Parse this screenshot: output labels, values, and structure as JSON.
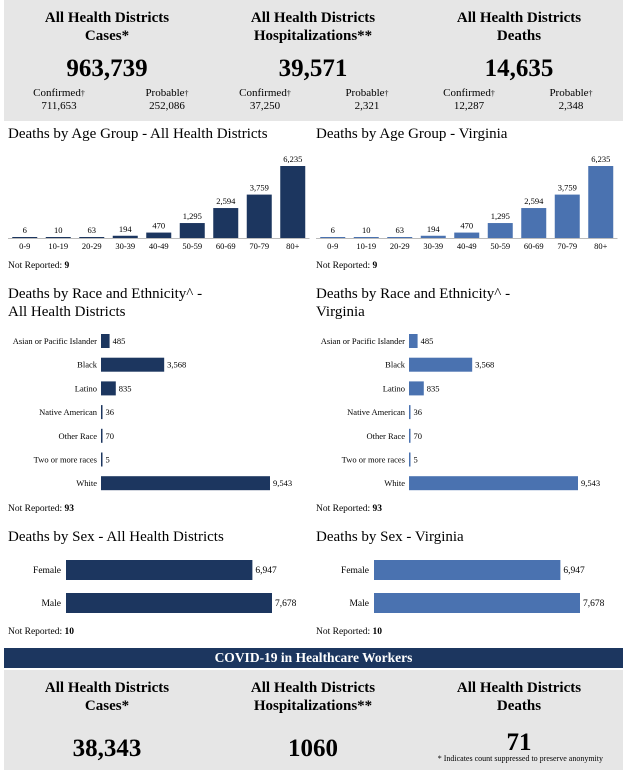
{
  "summary_top": [
    {
      "title": "All Health Districts Cases*",
      "value": "963,739",
      "subs": [
        {
          "label": "Confirmed",
          "value": "711,653"
        },
        {
          "label": "Probable",
          "value": "252,086"
        }
      ]
    },
    {
      "title": "All Health Districts Hospitalizations**",
      "value": "39,571",
      "subs": [
        {
          "label": "Confirmed",
          "value": "37,250"
        },
        {
          "label": "Probable",
          "value": "2,321"
        }
      ]
    },
    {
      "title": "All Health Districts Deaths",
      "value": "14,635",
      "subs": [
        {
          "label": "Confirmed",
          "value": "12,287"
        },
        {
          "label": "Probable",
          "value": "2,348"
        }
      ]
    }
  ],
  "dagger": "†",
  "age_left_note": {
    "label": "Not Reported:",
    "value": "9"
  },
  "age_right_note": {
    "label": "Not Reported:",
    "value": "9"
  },
  "race_left_note": {
    "label": "Not Reported:",
    "value": "93"
  },
  "race_right_note": {
    "label": "Not Reported:",
    "value": "93"
  },
  "sex_left_note": {
    "label": "Not Reported:",
    "value": "10"
  },
  "sex_right_note": {
    "label": "Not Reported:",
    "value": "10"
  },
  "banner": "COVID-19 in Healthcare Workers",
  "summary_bottom": [
    {
      "title": "All Health Districts Cases*",
      "value": "38,343"
    },
    {
      "title": "All Health Districts Hospitalizations**",
      "value": "1060"
    },
    {
      "title": "All Health Districts Deaths",
      "value": "71"
    }
  ],
  "footnote": "* Indicates count suppressed to preserve anonymity",
  "colors": {
    "dark": "#1c365f",
    "light": "#4a72b0"
  },
  "chart_data": [
    {
      "id": "age_left",
      "type": "bar",
      "title": "Deaths by Age Group - All Health Districts",
      "categories": [
        "0-9",
        "10-19",
        "20-29",
        "30-39",
        "40-49",
        "50-59",
        "60-69",
        "70-79",
        "80+"
      ],
      "values": [
        6,
        10,
        63,
        194,
        470,
        1295,
        2594,
        3759,
        6235
      ],
      "labels": [
        "6",
        "10",
        "63",
        "194",
        "470",
        "1,295",
        "2,594",
        "3,759",
        "6,235"
      ],
      "ylim": [
        0,
        6235
      ]
    },
    {
      "id": "age_right",
      "type": "bar",
      "title": "Deaths by Age Group - Virginia",
      "categories": [
        "0-9",
        "10-19",
        "20-29",
        "30-39",
        "40-49",
        "50-59",
        "60-69",
        "70-79",
        "80+"
      ],
      "values": [
        6,
        10,
        63,
        194,
        470,
        1295,
        2594,
        3759,
        6235
      ],
      "labels": [
        "6",
        "10",
        "63",
        "194",
        "470",
        "1,295",
        "2,594",
        "3,759",
        "6,235"
      ],
      "ylim": [
        0,
        6235
      ]
    },
    {
      "id": "race_left",
      "type": "bar",
      "orientation": "horizontal",
      "title_lines": [
        "Deaths by Race and Ethnicity^ -",
        "All Health Districts"
      ],
      "categories": [
        "Asian or Pacific Islander",
        "Black",
        "Latino",
        "Native American",
        "Other Race",
        "Two or more races",
        "White"
      ],
      "values": [
        485,
        3568,
        835,
        36,
        70,
        5,
        9543
      ],
      "labels": [
        "485",
        "3,568",
        "835",
        "36",
        "70",
        "5",
        "9,543"
      ],
      "xlim": [
        0,
        9543
      ]
    },
    {
      "id": "race_right",
      "type": "bar",
      "orientation": "horizontal",
      "title_lines": [
        "Deaths by Race and Ethnicity^ -",
        "Virginia"
      ],
      "categories": [
        "Asian or Pacific Islander",
        "Black",
        "Latino",
        "Native American",
        "Other Race",
        "Two or more races",
        "White"
      ],
      "values": [
        485,
        3568,
        835,
        36,
        70,
        5,
        9543
      ],
      "labels": [
        "485",
        "3,568",
        "835",
        "36",
        "70",
        "5",
        "9,543"
      ],
      "xlim": [
        0,
        9543
      ]
    },
    {
      "id": "sex_left",
      "type": "bar",
      "orientation": "horizontal",
      "title": "Deaths by Sex - All Health Districts",
      "categories": [
        "Female",
        "Male"
      ],
      "values": [
        6947,
        7678
      ],
      "labels": [
        "6,947",
        "7,678"
      ],
      "xlim": [
        0,
        7678
      ]
    },
    {
      "id": "sex_right",
      "type": "bar",
      "orientation": "horizontal",
      "title": "Deaths by Sex - Virginia",
      "categories": [
        "Female",
        "Male"
      ],
      "values": [
        6947,
        7678
      ],
      "labels": [
        "6,947",
        "7,678"
      ],
      "xlim": [
        0,
        7678
      ]
    }
  ]
}
